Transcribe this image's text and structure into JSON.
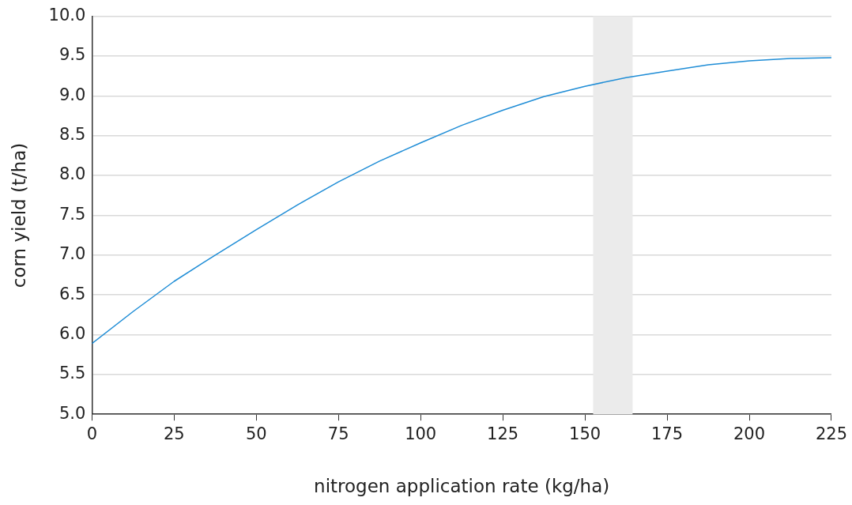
{
  "chart_data": {
    "type": "line",
    "xlabel": "nitrogen application rate (kg/ha)",
    "ylabel": "corn yield (t/ha)",
    "series": [
      {
        "color": "#1f8dd6",
        "x": [
          0,
          12.5,
          25,
          37.5,
          50,
          62.5,
          75,
          87.5,
          100,
          112.5,
          125,
          137.5,
          150,
          162.5,
          175,
          187.5,
          200,
          212.5,
          225
        ],
        "values": [
          5.89,
          6.29,
          6.67,
          7.0,
          7.32,
          7.63,
          7.92,
          8.18,
          8.41,
          8.63,
          8.82,
          8.99,
          9.12,
          9.23,
          9.31,
          9.39,
          9.44,
          9.47,
          9.48
        ]
      }
    ],
    "xlim": [
      0,
      225
    ],
    "xticks": [
      0,
      25,
      50,
      75,
      100,
      125,
      150,
      175,
      200,
      225
    ],
    "ylim": [
      5,
      10
    ],
    "yticks": [
      {
        "value": 5,
        "label": "5.0"
      },
      {
        "value": 5.5,
        "label": "5.5"
      },
      {
        "value": 6,
        "label": "6.0"
      },
      {
        "value": 6.5,
        "label": "6.5"
      },
      {
        "value": 7,
        "label": "7.0"
      },
      {
        "value": 7.5,
        "label": "7.5"
      },
      {
        "value": 8,
        "label": "8.0"
      },
      {
        "value": 8.5,
        "label": "8.5"
      },
      {
        "value": 9,
        "label": "9.0"
      },
      {
        "value": 9.5,
        "label": "9.5"
      },
      {
        "value": 10,
        "label": "10.0"
      }
    ],
    "bands": [
      {
        "axis": "x",
        "from": 152.5,
        "to": 164.5,
        "color": "#ebebeb"
      }
    ],
    "grid": "y",
    "marker": "none",
    "line_style": "solid",
    "legend": false
  }
}
